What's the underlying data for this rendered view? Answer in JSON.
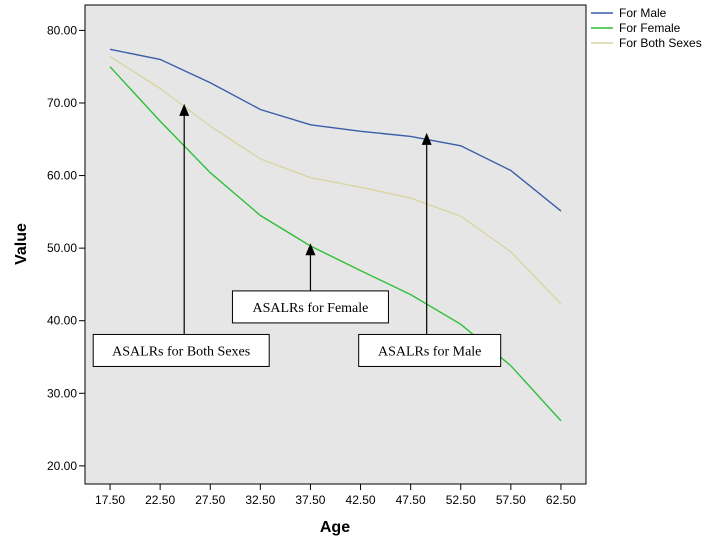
{
  "chart_data": {
    "type": "line",
    "title": "",
    "xlabel": "Age",
    "ylabel": "Value",
    "x": [
      17.5,
      22.5,
      27.5,
      32.5,
      37.5,
      42.5,
      47.5,
      52.5,
      57.5,
      62.5
    ],
    "x_tick_labels": [
      "17.50",
      "22.50",
      "27.50",
      "32.50",
      "37.50",
      "42.50",
      "47.50",
      "52.50",
      "57.50",
      "62.50"
    ],
    "y_ticks": [
      20,
      30,
      40,
      50,
      60,
      70,
      80
    ],
    "y_tick_labels": [
      "20.00",
      "30.00",
      "40.00",
      "50.00",
      "60.00",
      "70.00",
      "80.00"
    ],
    "xlim": [
      15,
      65
    ],
    "ylim": [
      17.5,
      83.5
    ],
    "grid": false,
    "legend_position": "top-right-outside",
    "series": [
      {
        "name": "For Male",
        "color": "#3a5ea8",
        "values": [
          77.4,
          76.0,
          72.8,
          69.1,
          67.0,
          66.1,
          65.4,
          64.1,
          60.7,
          55.1
        ]
      },
      {
        "name": "For Female",
        "color": "#2fbf3a",
        "values": [
          75.0,
          67.5,
          60.4,
          54.5,
          50.3,
          46.9,
          43.6,
          39.5,
          33.8,
          26.2
        ]
      },
      {
        "name": "For Both Sexes",
        "color": "#d9d6a4",
        "values": [
          76.4,
          72.0,
          66.8,
          62.3,
          59.7,
          58.4,
          56.9,
          54.4,
          49.5,
          42.3
        ]
      }
    ],
    "annotations": [
      {
        "text": "ASALRs for Both Sexes",
        "arrow_to": [
          24.9,
          69.6
        ],
        "box_center": [
          24.9,
          35.9
        ]
      },
      {
        "text": "ASALRs for Female",
        "arrow_to": [
          37.5,
          50.4
        ],
        "box_center": [
          37.5,
          41.9
        ]
      },
      {
        "text": "ASALRs for Male",
        "arrow_to": [
          49.1,
          65.6
        ],
        "box_center": [
          49.1,
          35.9
        ]
      }
    ]
  }
}
